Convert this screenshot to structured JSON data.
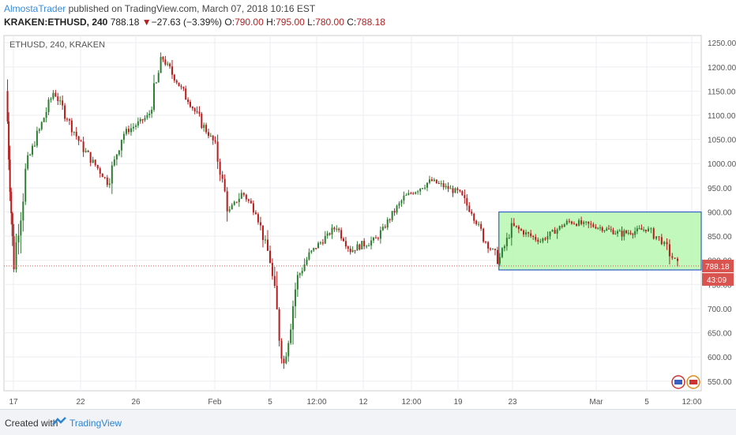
{
  "header": {
    "author": "AlmostaTrader",
    "published_text": " published on TradingView.com, March 07, 2018 10:16 EST",
    "symbol": "KRAKEN:ETHUSD, 240",
    "last": "788.18",
    "change_arrow": "▼",
    "change": "−27.63 (−3.39%)",
    "o_label": "O:",
    "o_value": "790.00",
    "h_label": "H:",
    "h_value": "795.00",
    "l_label": "L:",
    "l_value": "780.00",
    "c_label": "C:",
    "c_value": "788.18"
  },
  "chart_data": {
    "type": "candlestick",
    "title": "ETHUSD, 240, KRAKEN",
    "ylim": [
      530,
      1265
    ],
    "y_ticks": [
      550,
      600,
      650,
      700,
      750,
      800,
      850,
      900,
      950,
      1000,
      1050,
      1100,
      1150,
      1200,
      1250
    ],
    "y_tick_labels": [
      "550.00",
      "600.00",
      "650.00",
      "700.00",
      "750.00",
      "800.00",
      "850.00",
      "900.00",
      "950.00",
      "1000.00",
      "1050.00",
      "1100.00",
      "1150.00",
      "1200.00",
      "1250.00"
    ],
    "x_tick_labels": [
      "17",
      "22",
      "26",
      "Feb",
      "5",
      "12:00",
      "12",
      "12:00",
      "19",
      "23",
      "Mar",
      "5",
      "12:00"
    ],
    "price_line": 788.18,
    "price_badge": "788.18",
    "countdown_badge": "43:09",
    "range_box": {
      "low": 780,
      "high": 900
    },
    "approx_path": [
      {
        "t": "Jan 16",
        "price": 1150
      },
      {
        "t": "Jan 17",
        "price": 790
      },
      {
        "t": "Jan 18",
        "price": 1000
      },
      {
        "t": "Jan 20",
        "price": 1150
      },
      {
        "t": "Jan 22",
        "price": 1040
      },
      {
        "t": "Jan 24",
        "price": 960
      },
      {
        "t": "Jan 25",
        "price": 1060
      },
      {
        "t": "Jan 26",
        "price": 1080
      },
      {
        "t": "Jan 27",
        "price": 1100
      },
      {
        "t": "Jan 28",
        "price": 1220
      },
      {
        "t": "Jan 30",
        "price": 1130
      },
      {
        "t": "Feb 1",
        "price": 1040
      },
      {
        "t": "Feb 2",
        "price": 900
      },
      {
        "t": "Feb 3",
        "price": 940
      },
      {
        "t": "Feb 4",
        "price": 900
      },
      {
        "t": "Feb 5",
        "price": 800
      },
      {
        "t": "Feb 6",
        "price": 580
      },
      {
        "t": "Feb 7",
        "price": 760
      },
      {
        "t": "Feb 8",
        "price": 815
      },
      {
        "t": "Feb 10",
        "price": 870
      },
      {
        "t": "Feb 11",
        "price": 820
      },
      {
        "t": "Feb 13",
        "price": 845
      },
      {
        "t": "Feb 15",
        "price": 930
      },
      {
        "t": "Feb 17",
        "price": 965
      },
      {
        "t": "Feb 19",
        "price": 940
      },
      {
        "t": "Feb 20",
        "price": 900
      },
      {
        "t": "Feb 21",
        "price": 840
      },
      {
        "t": "Feb 22",
        "price": 800
      },
      {
        "t": "Feb 23",
        "price": 870
      },
      {
        "t": "Feb 25",
        "price": 840
      },
      {
        "t": "Feb 27",
        "price": 880
      },
      {
        "t": "Mar 1",
        "price": 870
      },
      {
        "t": "Mar 3",
        "price": 855
      },
      {
        "t": "Mar 5",
        "price": 865
      },
      {
        "t": "Mar 6",
        "price": 840
      },
      {
        "t": "Mar 7",
        "price": 788.18
      }
    ]
  },
  "footer": {
    "created_with": "Created with",
    "brand": "TradingView"
  }
}
